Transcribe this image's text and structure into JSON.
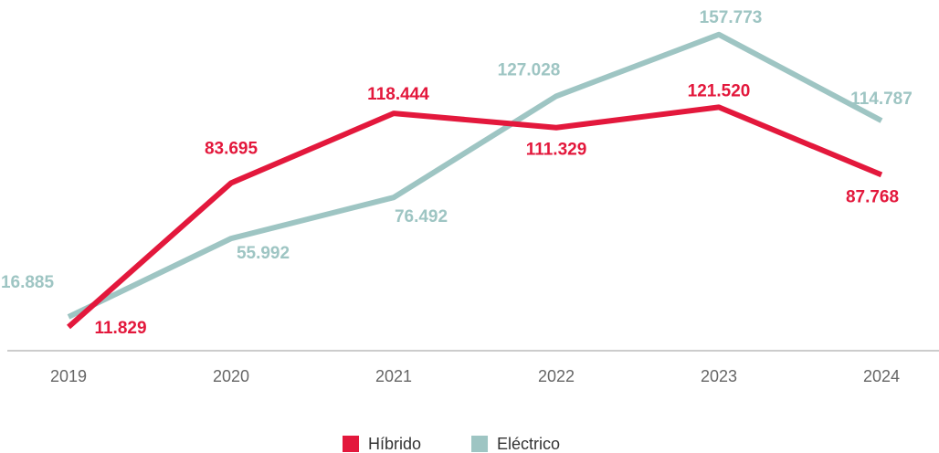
{
  "chart_data": {
    "type": "line",
    "categories": [
      "2019",
      "2020",
      "2021",
      "2022",
      "2023",
      "2024"
    ],
    "series": [
      {
        "name": "Híbrido",
        "color": "#e3183c",
        "values": [
          11829,
          83695,
          118444,
          111329,
          121520,
          87768
        ],
        "value_labels": [
          "11.829",
          "83.695",
          "118.444",
          "111.329",
          "121.520",
          "87.768"
        ]
      },
      {
        "name": "Eléctrico",
        "color": "#9ec5c3",
        "values": [
          16885,
          55992,
          76492,
          127028,
          157773,
          114787
        ],
        "value_labels": [
          "16.885",
          "55.992",
          "76.492",
          "127.028",
          "157.773",
          "114.787"
        ]
      }
    ],
    "ylim": [
      0,
      175000
    ],
    "legend": "bottom"
  }
}
